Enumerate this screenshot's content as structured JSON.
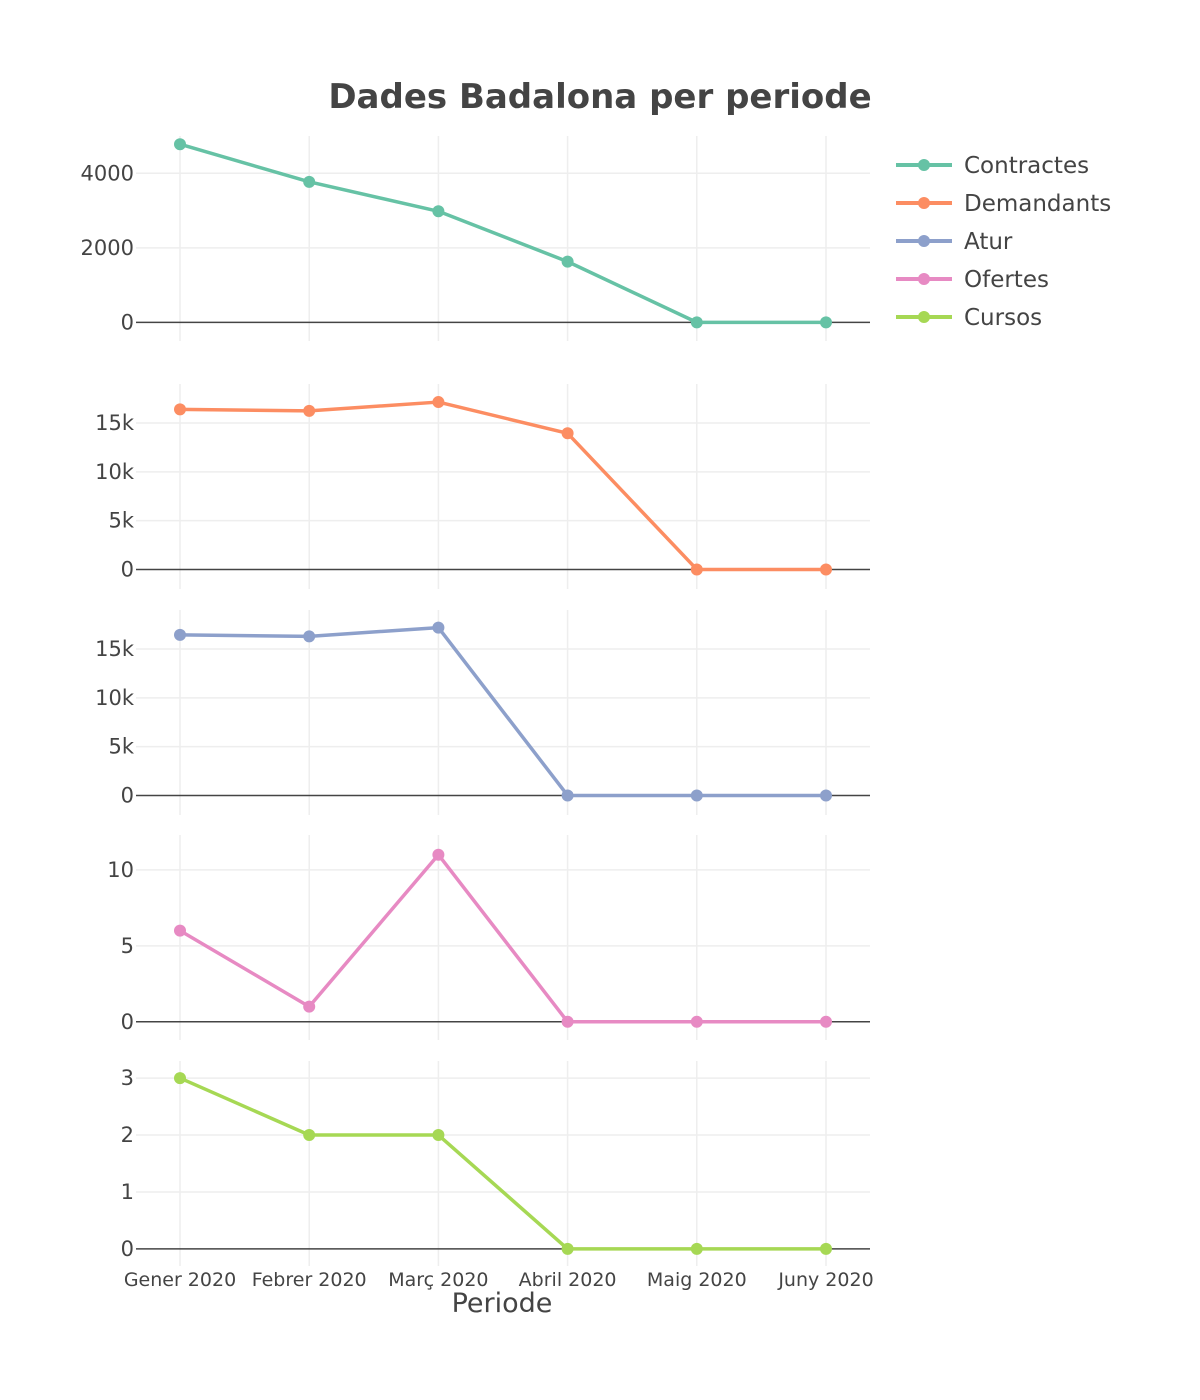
{
  "chart_data": {
    "type": "line",
    "title": "Dades Badalona per periode",
    "xlabel": "Periode",
    "categories": [
      "Gener 2020",
      "Febrer 2020",
      "Març 2020",
      "Abril 2020",
      "Maig 2020",
      "Juny 2020"
    ],
    "legend_position": "top-right",
    "grid": true,
    "subplots": [
      {
        "name": "Contractes",
        "color": "#66c2a5",
        "values": [
          4780,
          3770,
          2980,
          1630,
          0,
          0
        ],
        "ylim": [
          -500,
          5000
        ],
        "yticks": [
          0,
          2000,
          4000
        ],
        "ytick_labels": [
          "0",
          "2000",
          "4000"
        ]
      },
      {
        "name": "Demandants",
        "color": "#fc8d62",
        "values": [
          16400,
          16250,
          17150,
          13950,
          0,
          0
        ],
        "ylim": [
          -2000,
          19000
        ],
        "yticks": [
          0,
          5000,
          10000,
          15000
        ],
        "ytick_labels": [
          "0",
          "5k",
          "10k",
          "15k"
        ]
      },
      {
        "name": "Atur",
        "color": "#8da0cb",
        "values": [
          16450,
          16300,
          17200,
          0,
          0,
          0
        ],
        "ylim": [
          -2000,
          19000
        ],
        "yticks": [
          0,
          5000,
          10000,
          15000
        ],
        "ytick_labels": [
          "0",
          "5k",
          "10k",
          "15k"
        ]
      },
      {
        "name": "Ofertes",
        "color": "#e78ac3",
        "values": [
          6,
          1,
          11,
          0,
          0,
          0
        ],
        "ylim": [
          -1.2,
          12.3
        ],
        "yticks": [
          0,
          5,
          10
        ],
        "ytick_labels": [
          "0",
          "5",
          "10"
        ]
      },
      {
        "name": "Cursos",
        "color": "#a6d854",
        "values": [
          3,
          2,
          2,
          0,
          0,
          0
        ],
        "ylim": [
          -0.3,
          3.3
        ],
        "yticks": [
          0,
          1,
          2,
          3
        ],
        "ytick_labels": [
          "0",
          "1",
          "2",
          "3"
        ]
      }
    ]
  }
}
